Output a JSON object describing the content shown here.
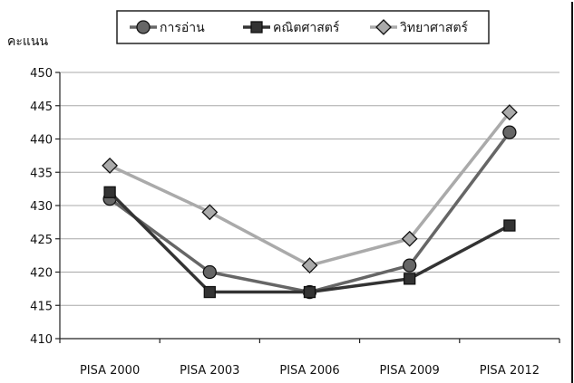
{
  "chart_data": {
    "type": "line",
    "ylabel": "คะแนน",
    "categories": [
      "PISA 2000",
      "PISA 2003",
      "PISA 2006",
      "PISA 2009",
      "PISA 2012"
    ],
    "ylim": [
      410,
      450
    ],
    "yticks": [
      410,
      415,
      420,
      425,
      430,
      435,
      440,
      445,
      450
    ],
    "grid": true,
    "legend_position": "top",
    "series": [
      {
        "name": "การอ่าน",
        "marker": "circle",
        "color": "#666666",
        "values": [
          431,
          420,
          417,
          421,
          441
        ]
      },
      {
        "name": "คณิตศาสตร์",
        "marker": "square",
        "color": "#333333",
        "values": [
          432,
          417,
          417,
          419,
          427
        ]
      },
      {
        "name": "วิทยาศาสตร์",
        "marker": "diamond",
        "color": "#aaaaaa",
        "values": [
          436,
          429,
          421,
          425,
          444
        ]
      }
    ]
  }
}
